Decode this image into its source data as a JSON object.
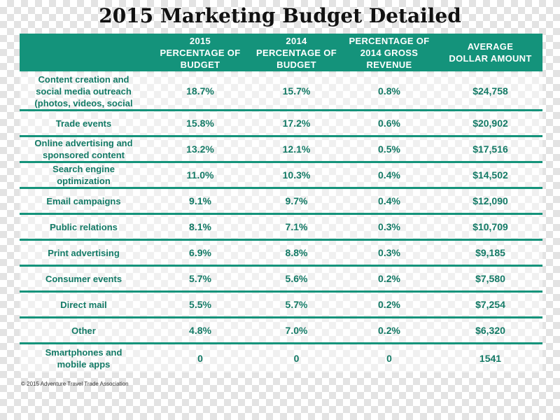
{
  "title": "2015 Marketing Budget Detailed",
  "header": {
    "col1": "2015\nPERCENTAGE OF\nBUDGET",
    "col2": "2014\nPERCENTAGE OF\nBUDGET",
    "col3": "PERCENTAGE OF\n2014 GROSS\nREVENUE",
    "col4": "AVERAGE\nDOLLAR AMOUNT"
  },
  "rows": [
    {
      "category": "Content creation and\nsocial media outreach\n(photos, videos, social",
      "p2015": "18.7%",
      "p2014": "15.7%",
      "revenue": "0.8%",
      "amount": "$24,758"
    },
    {
      "category": "Trade events",
      "p2015": "15.8%",
      "p2014": "17.2%",
      "revenue": "0.6%",
      "amount": "$20,902"
    },
    {
      "category": "Online advertising and\nsponsored content",
      "p2015": "13.2%",
      "p2014": "12.1%",
      "revenue": "0.5%",
      "amount": "$17,516"
    },
    {
      "category": "Search engine\noptimization",
      "p2015": "11.0%",
      "p2014": "10.3%",
      "revenue": "0.4%",
      "amount": "$14,502"
    },
    {
      "category": "Email campaigns",
      "p2015": "9.1%",
      "p2014": "9.7%",
      "revenue": "0.4%",
      "amount": "$12,090"
    },
    {
      "category": "Public relations",
      "p2015": "8.1%",
      "p2014": "7.1%",
      "revenue": "0.3%",
      "amount": "$10,709"
    },
    {
      "category": "Print advertising",
      "p2015": "6.9%",
      "p2014": "8.8%",
      "revenue": "0.3%",
      "amount": "$9,185"
    },
    {
      "category": "Consumer events",
      "p2015": "5.7%",
      "p2014": "5.6%",
      "revenue": "0.2%",
      "amount": "$7,580"
    },
    {
      "category": "Direct mail",
      "p2015": "5.5%",
      "p2014": "5.7%",
      "revenue": "0.2%",
      "amount": "$7,254"
    },
    {
      "category": "Other",
      "p2015": "4.8%",
      "p2014": "7.0%",
      "revenue": "0.2%",
      "amount": "$6,320"
    },
    {
      "category": "Smartphones and\nmobile apps",
      "p2015": "0",
      "p2014": "0",
      "revenue": "0",
      "amount": "1541"
    }
  ],
  "footer": "© 2015 Adventure Travel Trade Association",
  "colors": {
    "header_bg": "#14937b",
    "text_green": "#137a66",
    "rule": "#15937b"
  }
}
